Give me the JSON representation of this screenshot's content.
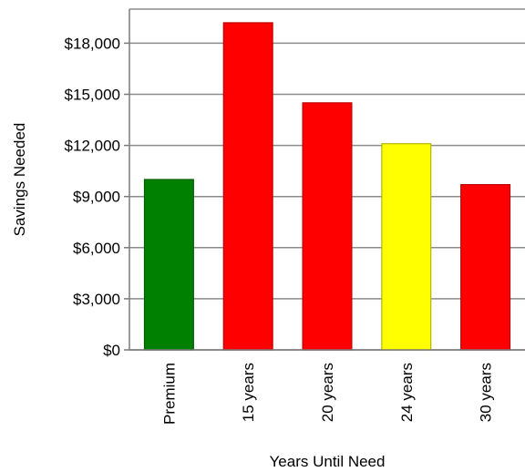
{
  "chart_data": {
    "type": "bar",
    "title": "",
    "xlabel": "Years Until Need",
    "ylabel": "Savings Needed",
    "categories": [
      "Premium",
      "15 years",
      "20 years",
      "24 years",
      "30 years"
    ],
    "values": [
      10000,
      19200,
      14500,
      12100,
      9700
    ],
    "colors": [
      "#008000",
      "#ff0000",
      "#ff0000",
      "#ffff00",
      "#ff0000"
    ],
    "stroke_colors": [
      "#005a00",
      "#c00000",
      "#c00000",
      "#b3b300",
      "#c00000"
    ],
    "ylim": [
      0,
      20000
    ],
    "yticks": [
      0,
      3000,
      6000,
      9000,
      12000,
      15000,
      18000
    ],
    "ytick_labels": [
      "$0",
      "$3,000",
      "$6,000",
      "$9,000",
      "$12,000",
      "$15,000",
      "$18,000"
    ],
    "grid": true,
    "legend": "none"
  }
}
